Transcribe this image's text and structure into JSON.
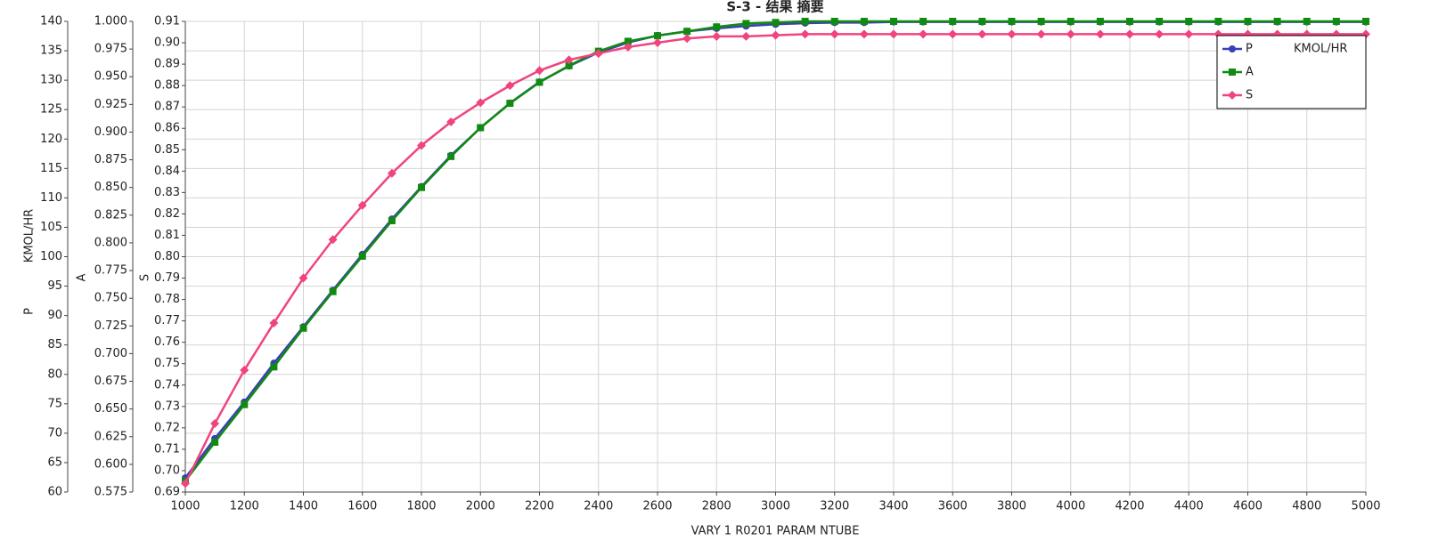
{
  "chart_data": {
    "type": "line",
    "title": "S-3 - 结果 摘要",
    "xlabel": "VARY   1 R0201    PARAM    NTUBE",
    "ylabel": "P",
    "ylabel_unit": "KMOL/HR",
    "y2label": "A",
    "y3label": "S",
    "grid": true,
    "legend_position": "upper right",
    "x": [
      1000,
      1100,
      1200,
      1300,
      1400,
      1500,
      1600,
      1700,
      1800,
      1900,
      2000,
      2100,
      2200,
      2300,
      2400,
      2500,
      2600,
      2700,
      2800,
      2900,
      3000,
      3100,
      3200,
      3300,
      3400,
      3500,
      3600,
      3700,
      3800,
      3900,
      4000,
      4100,
      4200,
      4300,
      4400,
      4500,
      4600,
      4700,
      4800,
      4900,
      5000
    ],
    "xlim": [
      1000,
      5000
    ],
    "xticks": [
      1000,
      1200,
      1400,
      1600,
      1800,
      2000,
      2200,
      2400,
      2600,
      2800,
      3000,
      3200,
      3400,
      3600,
      3800,
      4000,
      4200,
      4400,
      4600,
      4800,
      5000
    ],
    "ylim": [
      60,
      140
    ],
    "yticks": [
      60,
      65,
      70,
      75,
      80,
      85,
      90,
      95,
      100,
      105,
      110,
      115,
      120,
      125,
      130,
      135,
      140
    ],
    "y2lim": [
      0.575,
      1.0
    ],
    "y2ticks": [
      0.575,
      {
        "value": 0.6,
        "label": "0.600"
      },
      0.625,
      {
        "value": 0.65,
        "label": "0.650"
      },
      0.675,
      {
        "value": 0.7,
        "label": "0.700"
      },
      0.725,
      {
        "value": 0.75,
        "label": "0.750"
      },
      0.775,
      {
        "value": 0.8,
        "label": "0.800"
      },
      0.825,
      {
        "value": 0.85,
        "label": "0.850"
      },
      0.875,
      {
        "value": 0.9,
        "label": "0.900"
      },
      0.925,
      {
        "value": 0.95,
        "label": "0.950"
      },
      0.975,
      {
        "value": 1.0,
        "label": "1.000"
      }
    ],
    "y3lim": [
      0.69,
      0.91
    ],
    "y3ticks": [
      0.69,
      {
        "value": 0.7,
        "label": "0.70"
      },
      0.71,
      0.72,
      0.73,
      0.74,
      0.75,
      0.76,
      0.77,
      0.78,
      0.79,
      {
        "value": 0.8,
        "label": "0.80"
      },
      0.81,
      0.82,
      0.83,
      0.84,
      0.85,
      0.86,
      0.87,
      0.88,
      0.89,
      {
        "value": 0.9,
        "label": "0.90"
      },
      0.91
    ],
    "series": [
      {
        "name": "P",
        "unit": "KMOL/HR",
        "color": "#3a3fb8",
        "marker": "circle",
        "axis": "y",
        "values": [
          62.4,
          69.1,
          75.3,
          81.9,
          88.1,
          94.3,
          100.4,
          106.4,
          111.9,
          117.2,
          121.9,
          126.1,
          129.7,
          132.4,
          134.7,
          136.4,
          137.6,
          138.3,
          138.8,
          139.2,
          139.5,
          139.7,
          139.8,
          139.8,
          139.9,
          139.9,
          139.9,
          139.9,
          139.9,
          139.9,
          139.9,
          139.9,
          139.9,
          139.9,
          139.9,
          139.9,
          139.9,
          139.9,
          139.9,
          139.9,
          139.9
        ]
      },
      {
        "name": "A",
        "color": "#118a11",
        "marker": "square",
        "axis": "y2",
        "values": [
          0.585,
          0.62,
          0.654,
          0.688,
          0.723,
          0.756,
          0.788,
          0.82,
          0.85,
          0.878,
          0.904,
          0.926,
          0.945,
          0.96,
          0.973,
          0.982,
          0.987,
          0.991,
          0.995,
          0.998,
          0.999,
          1.0,
          1.0,
          1.0,
          1.0,
          1.0,
          1.0,
          1.0,
          1.0,
          1.0,
          1.0,
          1.0,
          1.0,
          1.0,
          1.0,
          1.0,
          1.0,
          1.0,
          1.0,
          1.0,
          1.0
        ]
      },
      {
        "name": "S",
        "color": "#f0447f",
        "marker": "diamond",
        "axis": "y3",
        "values": [
          0.694,
          0.722,
          0.747,
          0.769,
          0.79,
          0.808,
          0.824,
          0.839,
          0.852,
          0.863,
          0.872,
          0.88,
          0.887,
          0.892,
          0.895,
          0.898,
          0.9,
          0.902,
          0.903,
          0.903,
          0.9035,
          0.904,
          0.904,
          0.904,
          0.904,
          0.904,
          0.904,
          0.904,
          0.904,
          0.904,
          0.904,
          0.904,
          0.904,
          0.904,
          0.904,
          0.904,
          0.904,
          0.904,
          0.904,
          0.904,
          0.904
        ]
      }
    ]
  }
}
